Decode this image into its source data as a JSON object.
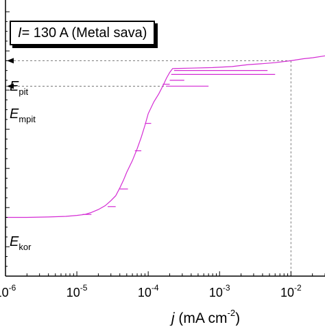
{
  "chart_data": {
    "type": "line",
    "legend": {
      "symbol": "I",
      "text": " = 130 A (Metal sava)"
    },
    "xlabel": {
      "symbol": "j",
      "unit": " (mA cm",
      "exponent": "-2",
      "close": ")"
    },
    "ylabel": "",
    "x_scale": "log",
    "xlim": [
      1e-06,
      0.03
    ],
    "ylim": [
      -0.55,
      0.86
    ],
    "x_ticks": [
      {
        "value": 1e-06,
        "base": "10",
        "exp": "-6"
      },
      {
        "value": 1e-05,
        "base": "10",
        "exp": "-5"
      },
      {
        "value": 0.0001,
        "base": "10",
        "exp": "-4"
      },
      {
        "value": 0.001,
        "base": "10",
        "exp": "-3"
      },
      {
        "value": 0.01,
        "base": "10",
        "exp": "-2"
      }
    ],
    "annotations": [
      {
        "id": "pit",
        "main": "E",
        "sub": "pit",
        "y": 0.55
      },
      {
        "id": "mpit",
        "main": "E",
        "sub": "mpit",
        "y": 0.42
      },
      {
        "id": "kor",
        "main": "E",
        "sub": "kor",
        "y": -0.25
      }
    ],
    "reference_lines": {
      "E_pit": 0.55,
      "E_mpit": 0.42,
      "j_pit": 0.01
    },
    "series": [
      {
        "color": "#d42ad4",
        "points": [
          [
            1e-06,
            -0.25
          ],
          [
            2e-06,
            -0.25
          ],
          [
            4e-06,
            -0.248
          ],
          [
            7e-06,
            -0.245
          ],
          [
            1e-05,
            -0.24
          ],
          [
            1.3e-05,
            -0.235
          ],
          [
            1.6e-05,
            -0.225
          ],
          [
            2e-05,
            -0.21
          ],
          [
            2.5e-05,
            -0.19
          ],
          [
            3e-05,
            -0.165
          ],
          [
            3.5e-05,
            -0.14
          ],
          [
            4e-05,
            -0.1
          ],
          [
            4.5e-05,
            -0.06
          ],
          [
            5e-05,
            -0.02
          ],
          [
            6e-05,
            0.04
          ],
          [
            7e-05,
            0.1
          ],
          [
            8e-05,
            0.16
          ],
          [
            9e-05,
            0.22
          ],
          [
            0.0001,
            0.28
          ],
          [
            0.00012,
            0.34
          ],
          [
            0.00014,
            0.38
          ],
          [
            0.00016,
            0.42
          ],
          [
            0.00018,
            0.46
          ],
          [
            0.0002,
            0.49
          ],
          [
            0.00022,
            0.51
          ],
          [
            0.0004,
            0.512
          ],
          [
            0.0008,
            0.515
          ],
          [
            0.0015,
            0.52
          ],
          [
            0.0025,
            0.53
          ],
          [
            0.004,
            0.535
          ],
          [
            0.006,
            0.54
          ],
          [
            0.01,
            0.55
          ],
          [
            0.015,
            0.56
          ],
          [
            0.02,
            0.565
          ],
          [
            0.03,
            0.575
          ]
        ]
      }
    ],
    "spikes": [
      {
        "x": 1.2e-05,
        "y": -0.235,
        "to": 1.6e-05
      },
      {
        "x": 2.7e-05,
        "y": -0.195,
        "to": 3.5e-05
      },
      {
        "x": 4e-05,
        "y": -0.105,
        "to": 5.2e-05
      },
      {
        "x": 6.5e-05,
        "y": 0.09,
        "to": 8e-05
      },
      {
        "x": 9e-05,
        "y": 0.23,
        "to": 0.00011
      },
      {
        "x": 0.00016,
        "y": 0.43,
        "to": 0.0002
      },
      {
        "x": 0.00018,
        "y": 0.42,
        "to": 0.0007
      },
      {
        "x": 0.0002,
        "y": 0.45,
        "to": 0.00032
      },
      {
        "x": 0.00021,
        "y": 0.48,
        "to": 0.006
      },
      {
        "x": 0.00023,
        "y": 0.5,
        "to": 0.0047
      }
    ]
  }
}
